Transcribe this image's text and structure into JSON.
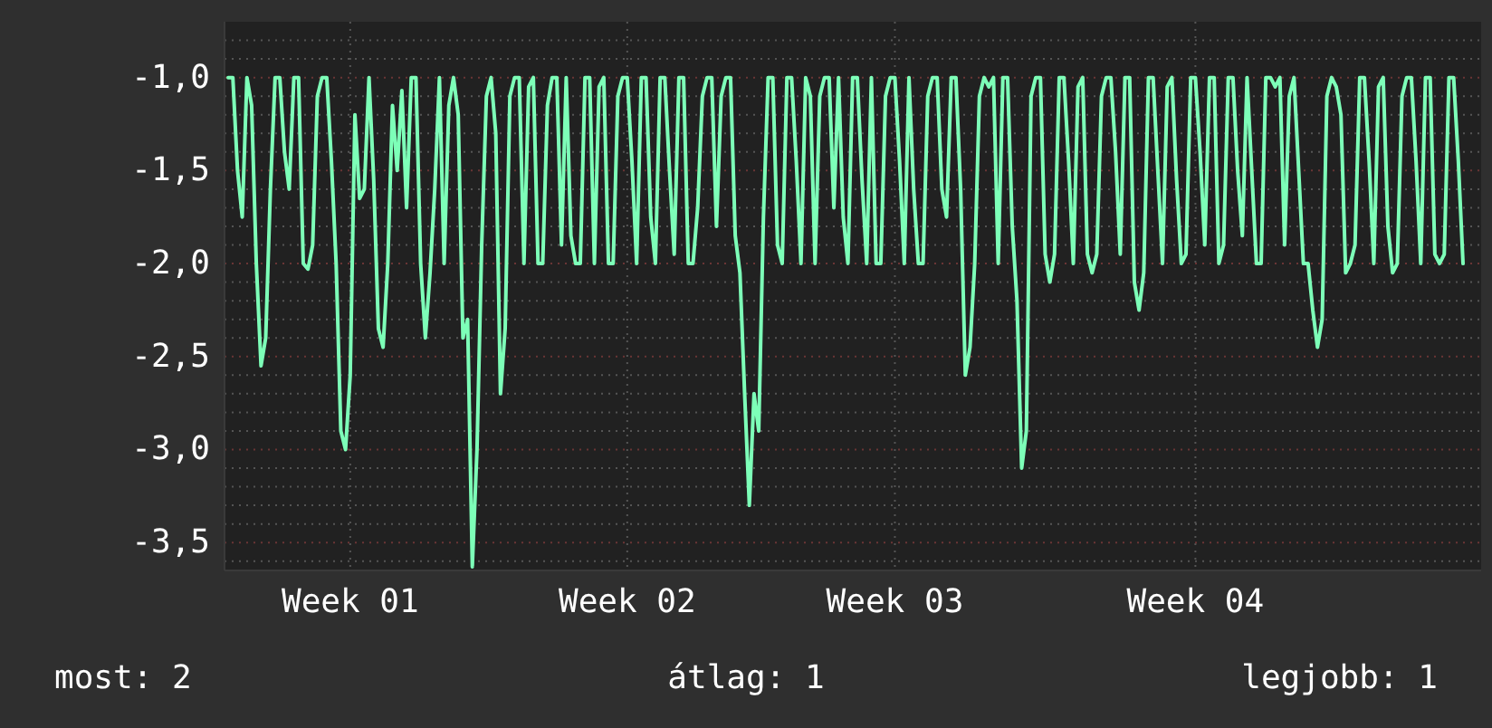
{
  "chart_data": {
    "type": "line",
    "ylim": [
      -3.65,
      -0.7
    ],
    "categories": [
      null,
      null,
      null,
      null,
      null,
      null,
      null,
      null,
      null,
      null,
      null,
      null,
      null,
      null,
      null,
      null,
      null,
      null,
      null,
      null,
      null,
      null,
      null,
      null,
      null,
      null,
      "Week 01",
      null,
      null,
      null,
      null,
      null,
      null,
      null,
      null,
      null,
      null,
      null,
      null,
      null,
      null,
      null,
      null,
      null,
      null,
      null,
      null,
      null,
      null,
      null,
      null,
      null,
      null,
      null,
      null,
      null,
      null,
      null,
      null,
      null,
      null,
      null,
      null,
      null,
      null,
      null,
      null,
      null,
      null,
      null,
      null,
      null,
      null,
      null,
      null,
      null,
      null,
      null,
      null,
      null,
      null,
      null,
      null,
      null,
      null,
      "Week 02",
      null,
      null,
      null,
      null,
      null,
      null,
      null,
      null,
      null,
      null,
      null,
      null,
      null,
      null,
      null,
      null,
      null,
      null,
      null,
      null,
      null,
      null,
      null,
      null,
      null,
      null,
      null,
      null,
      null,
      null,
      null,
      null,
      null,
      null,
      null,
      null,
      null,
      null,
      null,
      null,
      null,
      null,
      null,
      null,
      null,
      null,
      null,
      null,
      null,
      null,
      null,
      null,
      null,
      null,
      null,
      null,
      "Week 03",
      null,
      null,
      null,
      null,
      null,
      null,
      null,
      null,
      null,
      null,
      null,
      null,
      null,
      null,
      null,
      null,
      null,
      null,
      null,
      null,
      null,
      null,
      null,
      null,
      null,
      null,
      null,
      null,
      null,
      null,
      null,
      null,
      null,
      null,
      null,
      null,
      null,
      null,
      null,
      null,
      null,
      null,
      null,
      null,
      null,
      null,
      null,
      null,
      null,
      null,
      null,
      null,
      null,
      null,
      null,
      null,
      null,
      null,
      null,
      null,
      null,
      null,
      null,
      "Week 04",
      null,
      null,
      null,
      null,
      null,
      null,
      null,
      null,
      null,
      null,
      null,
      null,
      null,
      null,
      null,
      null,
      null,
      null,
      null,
      null,
      null,
      null,
      null,
      null,
      null,
      null,
      null,
      null,
      null,
      null,
      null,
      null,
      null,
      null,
      null,
      null,
      null,
      null,
      null,
      null,
      null,
      null,
      null,
      null,
      null,
      null,
      null,
      null,
      null,
      null,
      null,
      null,
      null,
      null,
      null,
      null,
      null
    ],
    "yticks": [
      {
        "value": -0.8,
        "label": null
      },
      {
        "value": -0.9,
        "label": null
      },
      {
        "value": -1.0,
        "label": "-1,0"
      },
      {
        "value": -1.1,
        "label": null
      },
      {
        "value": -1.2,
        "label": null
      },
      {
        "value": -1.3,
        "label": null
      },
      {
        "value": -1.4,
        "label": null
      },
      {
        "value": -1.5,
        "label": "-1,5"
      },
      {
        "value": -1.6,
        "label": null
      },
      {
        "value": -1.7,
        "label": null
      },
      {
        "value": -1.8,
        "label": null
      },
      {
        "value": -1.9,
        "label": null
      },
      {
        "value": -2.0,
        "label": "-2,0"
      },
      {
        "value": -2.1,
        "label": null
      },
      {
        "value": -2.2,
        "label": null
      },
      {
        "value": -2.3,
        "label": null
      },
      {
        "value": -2.4,
        "label": null
      },
      {
        "value": -2.5,
        "label": "-2,5"
      },
      {
        "value": -2.6,
        "label": null
      },
      {
        "value": -2.7,
        "label": null
      },
      {
        "value": -2.8,
        "label": null
      },
      {
        "value": -2.9,
        "label": null
      },
      {
        "value": -3.0,
        "label": "-3,0"
      },
      {
        "value": -3.1,
        "label": null
      },
      {
        "value": -3.2,
        "label": null
      },
      {
        "value": -3.3,
        "label": null
      },
      {
        "value": -3.4,
        "label": null
      },
      {
        "value": -3.5,
        "label": "-3,5"
      },
      {
        "value": -3.6,
        "label": null
      }
    ],
    "grid": true,
    "line_style": "solid",
    "annotations": [
      "most: 2",
      "átlag: 1",
      "legjobb: 1"
    ],
    "series": [
      {
        "color": "#7dffb8",
        "values": [
          -1,
          -1,
          -1.5,
          -1.75,
          -1,
          -1.15,
          -2,
          -2.55,
          -2.4,
          -1.6,
          -1,
          -1,
          -1.4,
          -1.6,
          -1,
          -1,
          -2,
          -2.03,
          -1.9,
          -1.1,
          -1,
          -1,
          -1.45,
          -2,
          -2.9,
          -3.0,
          -2.6,
          -1.2,
          -1.65,
          -1.6,
          -1,
          -1.55,
          -2.35,
          -2.45,
          -2,
          -1.15,
          -1.5,
          -1.07,
          -1.7,
          -1,
          -1,
          -2,
          -2.4,
          -2.05,
          -1.6,
          -1,
          -2,
          -1.15,
          -1,
          -1.2,
          -2.4,
          -2.3,
          -3.63,
          -3.0,
          -1.9,
          -1.1,
          -1,
          -1.3,
          -2.7,
          -2.35,
          -1.1,
          -1,
          -1,
          -2,
          -1.05,
          -1,
          -2,
          -2,
          -1.15,
          -1,
          -1,
          -1.9,
          -1,
          -1.85,
          -2,
          -2,
          -1,
          -1,
          -2,
          -1.05,
          -1,
          -2,
          -2,
          -1.1,
          -1,
          -1,
          -1.45,
          -2,
          -1,
          -1,
          -1.75,
          -2,
          -1,
          -1,
          -1.5,
          -1.95,
          -1,
          -1,
          -2,
          -2,
          -1.7,
          -1.1,
          -1,
          -1,
          -1.8,
          -1.1,
          -1,
          -1,
          -1.85,
          -2.05,
          -2.7,
          -3.3,
          -2.7,
          -2.9,
          -1.75,
          -1,
          -1,
          -1.9,
          -2,
          -1,
          -1,
          -1.45,
          -2,
          -1,
          -1.1,
          -2,
          -1.1,
          -1,
          -1,
          -1.7,
          -1,
          -1.75,
          -2,
          -1,
          -1,
          -1.55,
          -2,
          -1,
          -2,
          -2,
          -1.1,
          -1,
          -1,
          -1.45,
          -2,
          -1,
          -1.6,
          -2,
          -2,
          -1.1,
          -1,
          -1,
          -1.6,
          -1.75,
          -1,
          -1,
          -1.6,
          -2.6,
          -2.45,
          -2,
          -1.1,
          -1,
          -1.05,
          -1,
          -2,
          -1,
          -1,
          -1.8,
          -2.2,
          -3.1,
          -2.9,
          -1.1,
          -1,
          -1,
          -1.95,
          -2.1,
          -1.95,
          -1,
          -1,
          -1.45,
          -2,
          -1.05,
          -1,
          -1.95,
          -2.05,
          -1.95,
          -1.1,
          -1,
          -1,
          -1.4,
          -1.95,
          -1,
          -1,
          -2.1,
          -2.25,
          -2.05,
          -1,
          -1,
          -1.5,
          -2,
          -1.05,
          -1,
          -1.55,
          -2,
          -1.95,
          -1,
          -1,
          -1.4,
          -1.9,
          -1,
          -1,
          -2,
          -1.9,
          -1,
          -1,
          -1.5,
          -1.85,
          -1,
          -1.5,
          -2,
          -2,
          -1,
          -1,
          -1.05,
          -1,
          -1.9,
          -1.1,
          -1,
          -1.5,
          -2,
          -2,
          -2.25,
          -2.45,
          -2.3,
          -1.1,
          -1,
          -1.05,
          -1.2,
          -2.05,
          -2,
          -1.9,
          -1,
          -1,
          -1.45,
          -2,
          -1.05,
          -1,
          -1.8,
          -2.05,
          -2,
          -1.1,
          -1,
          -1,
          -1.45,
          -2,
          -1,
          -1,
          -1.95,
          -2,
          -1.95,
          -1,
          -1,
          -1.45,
          -2
        ]
      }
    ]
  }
}
